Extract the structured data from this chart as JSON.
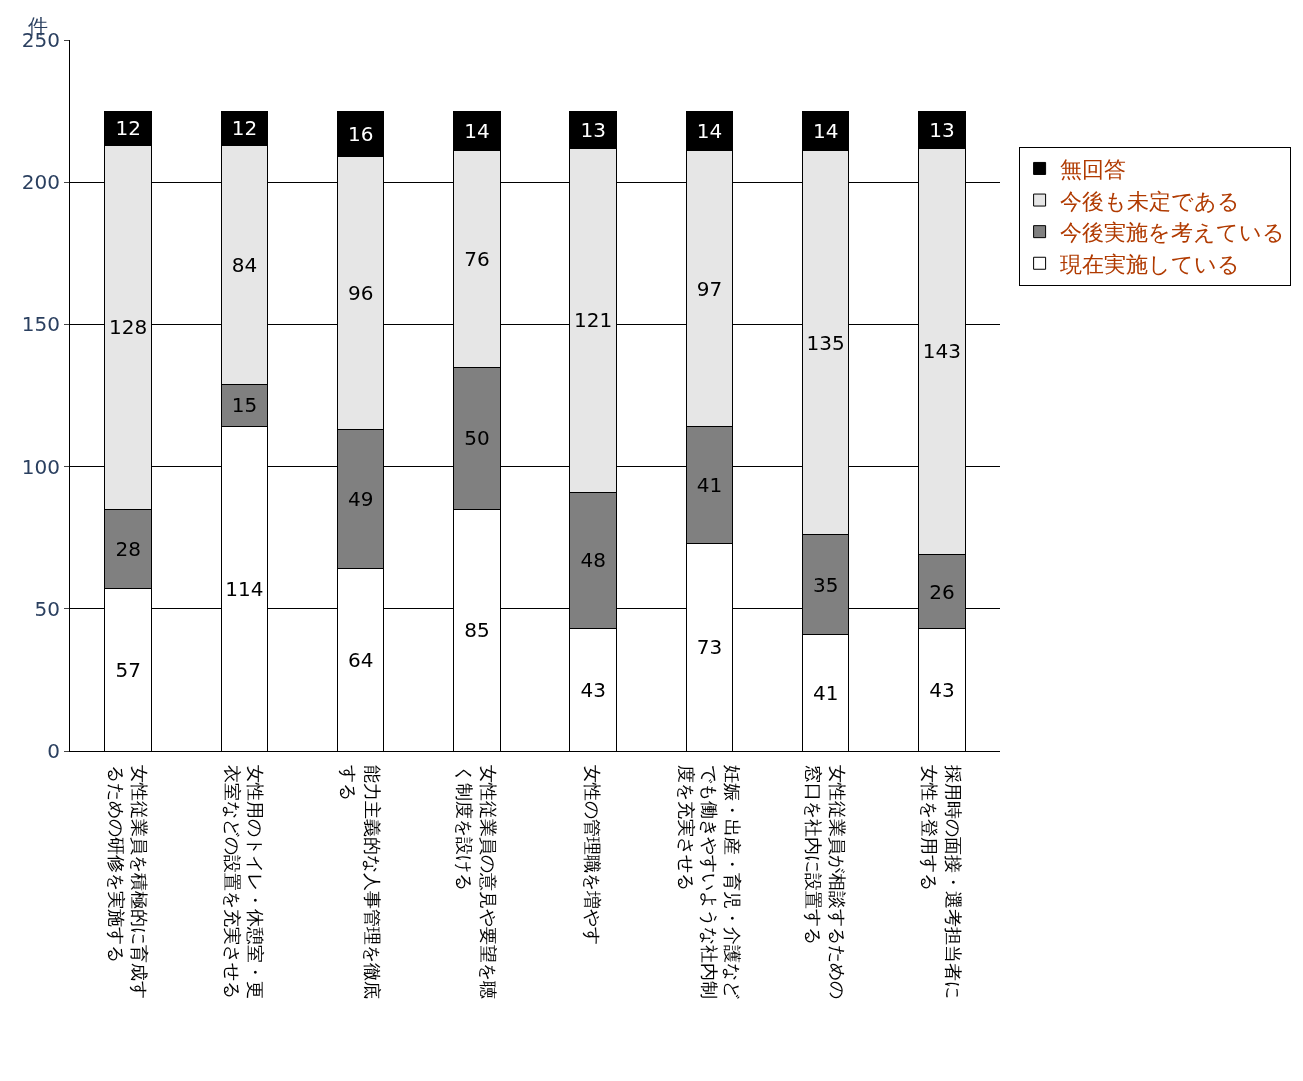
{
  "chart_data": {
    "type": "bar",
    "stacked": true,
    "ylabel": "件",
    "categories": [
      "女性従業員を積極的に育成するための研修を実施する",
      "女性用のトイレ・休憩室・更衣室などの設置を充実させる",
      "能力主義的な人事管理を徹底する",
      "女性従業員の意見や要望を聴く制度を設ける",
      "女性の管理職を増やす",
      "妊娠・出産・育児・介護などでも働きやすいような社内制度を充実させる",
      "女性従業員が相談するための窓口を社内に設置する",
      "採用時の面接・選考担当者に女性を登用する"
    ],
    "series": [
      {
        "name": "現在実施している",
        "color": "#ffffff",
        "values": [
          57,
          114,
          64,
          85,
          43,
          73,
          41,
          43
        ]
      },
      {
        "name": "今後実施を考えている",
        "color": "#808080",
        "values": [
          28,
          15,
          49,
          50,
          48,
          41,
          35,
          26
        ]
      },
      {
        "name": "今後も未定である",
        "color": "#e6e6e6",
        "values": [
          128,
          84,
          96,
          76,
          121,
          97,
          135,
          143
        ]
      },
      {
        "name": "無回答",
        "color": "#000000",
        "values": [
          12,
          12,
          16,
          14,
          13,
          14,
          14,
          13
        ]
      }
    ],
    "ylim": [
      0,
      250
    ],
    "yticks": [
      0,
      50,
      100,
      150,
      200,
      250
    ],
    "grid": "y",
    "legend": "right",
    "data_labels": true
  }
}
